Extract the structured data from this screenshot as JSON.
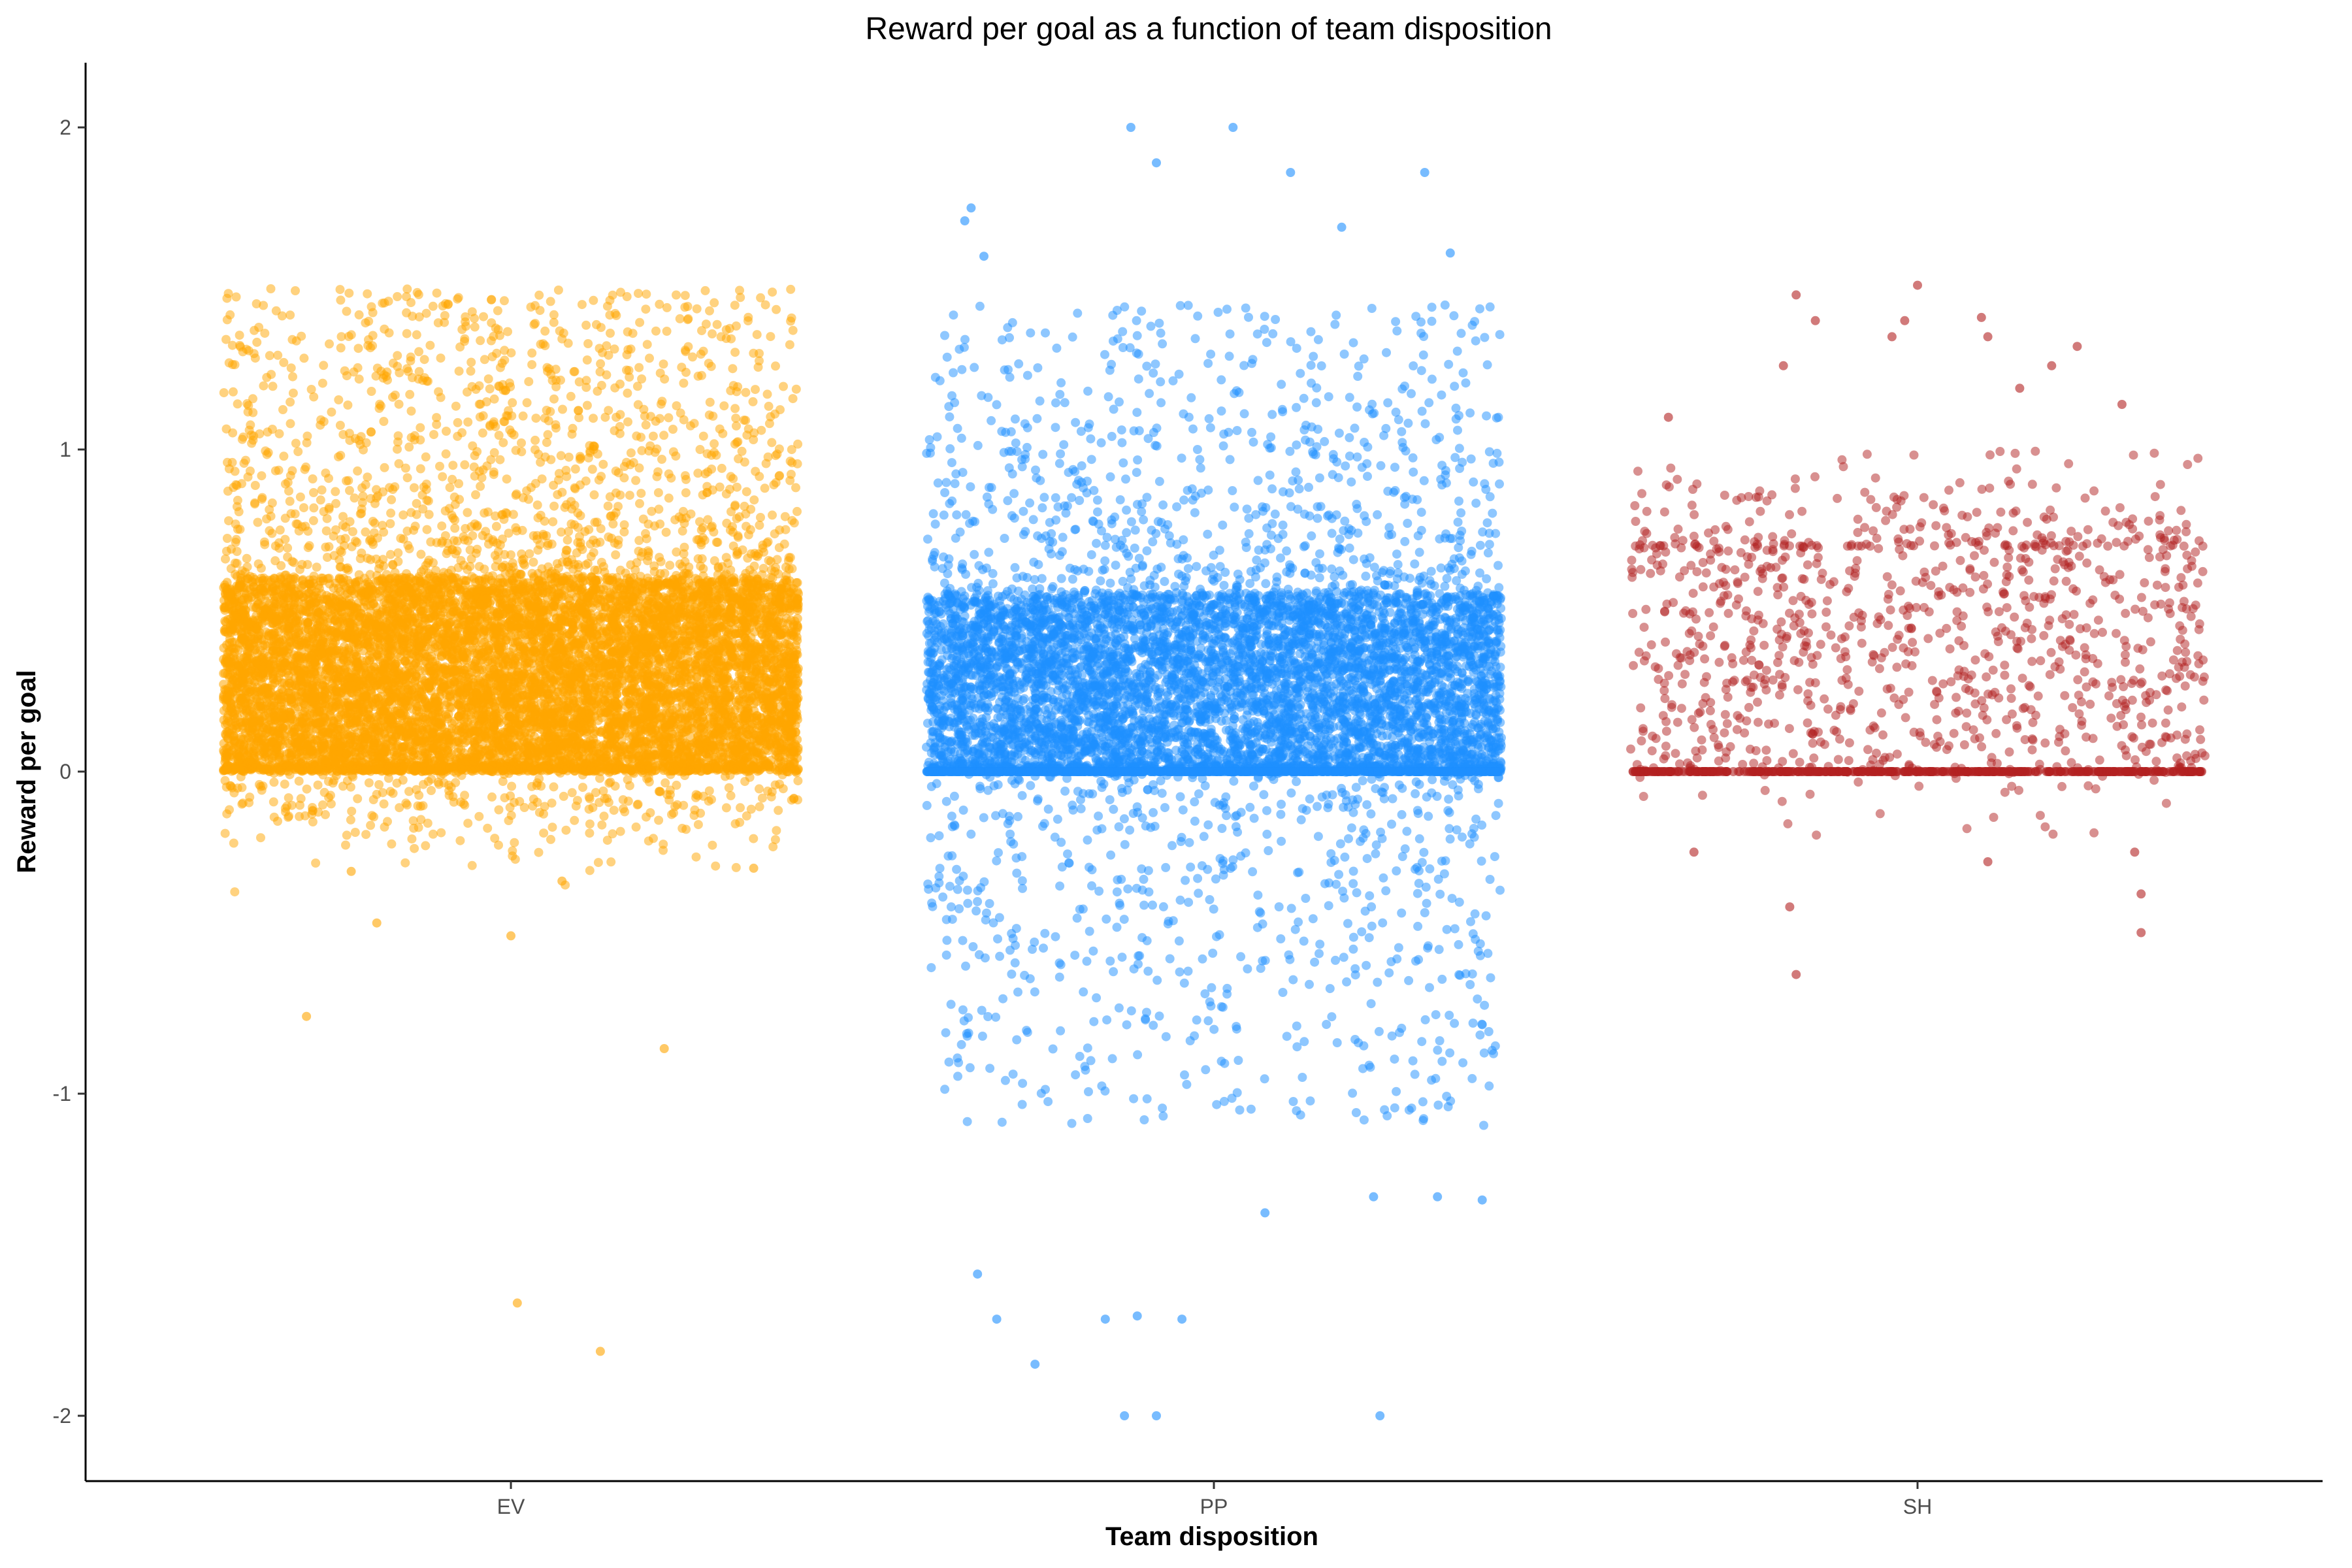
{
  "chart_data": {
    "type": "scatter",
    "title": "Reward per goal as a function of team disposition",
    "xlabel": "Team disposition",
    "ylabel": "Reward per goal",
    "categories": [
      "EV",
      "PP",
      "SH"
    ],
    "ylim": [
      -2.2,
      2.2
    ],
    "yticks": [
      -2,
      -1,
      0,
      1,
      2
    ],
    "grid": false,
    "legend": "none",
    "series": [
      {
        "category": "EV",
        "color": "#FFA500",
        "point_count_estimate": 26000,
        "dense_band": [
          0.0,
          0.6
        ],
        "outliers": [
          {
            "x_offset": -0.32,
            "y": -0.76
          },
          {
            "x_offset": 0.24,
            "y": -0.86
          },
          {
            "x_offset": 0.01,
            "y": -1.65
          },
          {
            "x_offset": 0.14,
            "y": -1.8
          },
          {
            "x_offset": -0.21,
            "y": -0.47
          },
          {
            "x_offset": 0.0,
            "y": -0.51
          },
          {
            "x_offset": -0.25,
            "y": -0.31
          },
          {
            "x_offset": 0.08,
            "y": -0.34
          },
          {
            "x_offset": 0.38,
            "y": -0.3
          }
        ]
      },
      {
        "category": "PP",
        "color": "#1E90FF",
        "point_count_estimate": 9000,
        "dense_band": [
          0.0,
          0.55
        ],
        "outliers": [
          {
            "x_offset": -0.13,
            "y": 2.0
          },
          {
            "x_offset": 0.03,
            "y": 2.0
          },
          {
            "x_offset": -0.09,
            "y": 1.89
          },
          {
            "x_offset": 0.12,
            "y": 1.86
          },
          {
            "x_offset": 0.33,
            "y": 1.86
          },
          {
            "x_offset": -0.38,
            "y": 1.75
          },
          {
            "x_offset": -0.39,
            "y": 1.71
          },
          {
            "x_offset": 0.2,
            "y": 1.69
          },
          {
            "x_offset": -0.36,
            "y": 1.6
          },
          {
            "x_offset": 0.37,
            "y": 1.61
          },
          {
            "x_offset": -0.37,
            "y": -1.56
          },
          {
            "x_offset": -0.34,
            "y": -1.7
          },
          {
            "x_offset": -0.28,
            "y": -1.84
          },
          {
            "x_offset": -0.17,
            "y": -1.7
          },
          {
            "x_offset": -0.12,
            "y": -1.69
          },
          {
            "x_offset": -0.05,
            "y": -1.7
          },
          {
            "x_offset": -0.14,
            "y": -2.0
          },
          {
            "x_offset": -0.09,
            "y": -2.0
          },
          {
            "x_offset": 0.26,
            "y": -2.0
          },
          {
            "x_offset": 0.08,
            "y": -1.37
          },
          {
            "x_offset": 0.35,
            "y": -1.32
          },
          {
            "x_offset": 0.42,
            "y": -1.33
          },
          {
            "x_offset": 0.25,
            "y": -1.32
          }
        ]
      },
      {
        "category": "SH",
        "color": "#B22222",
        "point_count_estimate": 1400,
        "dense_band": [
          0.0,
          0.7
        ],
        "outliers": [
          {
            "x_offset": 0.0,
            "y": 1.51
          },
          {
            "x_offset": -0.19,
            "y": 1.48
          },
          {
            "x_offset": 0.1,
            "y": 1.41
          },
          {
            "x_offset": -0.16,
            "y": 1.4
          },
          {
            "x_offset": -0.02,
            "y": 1.4
          },
          {
            "x_offset": -0.04,
            "y": 1.35
          },
          {
            "x_offset": 0.11,
            "y": 1.35
          },
          {
            "x_offset": 0.25,
            "y": 1.32
          },
          {
            "x_offset": 0.21,
            "y": 1.26
          },
          {
            "x_offset": -0.21,
            "y": 1.26
          },
          {
            "x_offset": 0.16,
            "y": 1.19
          },
          {
            "x_offset": 0.32,
            "y": 1.14
          },
          {
            "x_offset": -0.39,
            "y": 1.1
          },
          {
            "x_offset": -0.19,
            "y": -0.63
          },
          {
            "x_offset": 0.35,
            "y": -0.5
          },
          {
            "x_offset": -0.2,
            "y": -0.42
          },
          {
            "x_offset": 0.35,
            "y": -0.38
          },
          {
            "x_offset": 0.11,
            "y": -0.28
          },
          {
            "x_offset": 0.34,
            "y": -0.25
          },
          {
            "x_offset": -0.35,
            "y": -0.25
          }
        ]
      }
    ]
  }
}
